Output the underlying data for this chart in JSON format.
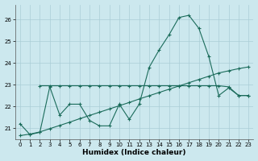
{
  "xlabel": "Humidex (Indice chaleur)",
  "bg_color": "#cce8ee",
  "grid_color": "#aacdd6",
  "line_color": "#1a6b5a",
  "xlim": [
    -0.5,
    23.5
  ],
  "ylim": [
    20.5,
    26.7
  ],
  "yticks": [
    21,
    22,
    23,
    24,
    25,
    26
  ],
  "xticks": [
    0,
    1,
    2,
    3,
    4,
    5,
    6,
    7,
    8,
    9,
    10,
    11,
    12,
    13,
    14,
    15,
    16,
    17,
    18,
    19,
    20,
    21,
    22,
    23
  ],
  "line1_x": [
    0,
    1,
    2,
    3,
    4,
    5,
    6,
    7,
    8,
    9,
    10,
    11,
    12,
    13,
    14,
    15,
    16,
    17,
    18,
    19,
    20,
    21,
    22,
    23
  ],
  "line1_y": [
    21.2,
    20.7,
    20.8,
    22.9,
    21.6,
    22.1,
    22.1,
    21.35,
    21.1,
    21.1,
    22.1,
    21.4,
    22.1,
    23.8,
    24.6,
    25.3,
    26.1,
    26.2,
    25.6,
    24.3,
    22.5,
    22.85,
    22.5,
    22.5
  ],
  "line2_x": [
    0,
    1,
    2,
    3,
    4,
    5,
    6,
    7,
    8,
    9,
    10,
    11,
    12,
    13,
    14,
    15,
    16,
    17,
    18,
    19,
    20,
    21,
    22,
    23
  ],
  "line2_y": [
    20.65,
    20.72,
    20.82,
    20.97,
    21.12,
    21.27,
    21.43,
    21.58,
    21.73,
    21.88,
    22.03,
    22.18,
    22.34,
    22.49,
    22.64,
    22.79,
    22.94,
    23.09,
    23.24,
    23.39,
    23.54,
    23.64,
    23.74,
    23.82
  ],
  "line3_x": [
    2,
    3,
    4,
    5,
    6,
    7,
    8,
    9,
    10,
    11,
    12,
    13,
    14,
    15,
    16,
    17,
    18,
    19,
    20,
    21,
    22,
    23
  ],
  "line3_y": [
    22.95,
    22.95,
    22.95,
    22.95,
    22.95,
    22.95,
    22.95,
    22.95,
    22.95,
    22.95,
    22.95,
    22.95,
    22.95,
    22.95,
    22.95,
    22.95,
    22.95,
    22.95,
    22.95,
    22.9,
    22.5,
    22.5
  ]
}
